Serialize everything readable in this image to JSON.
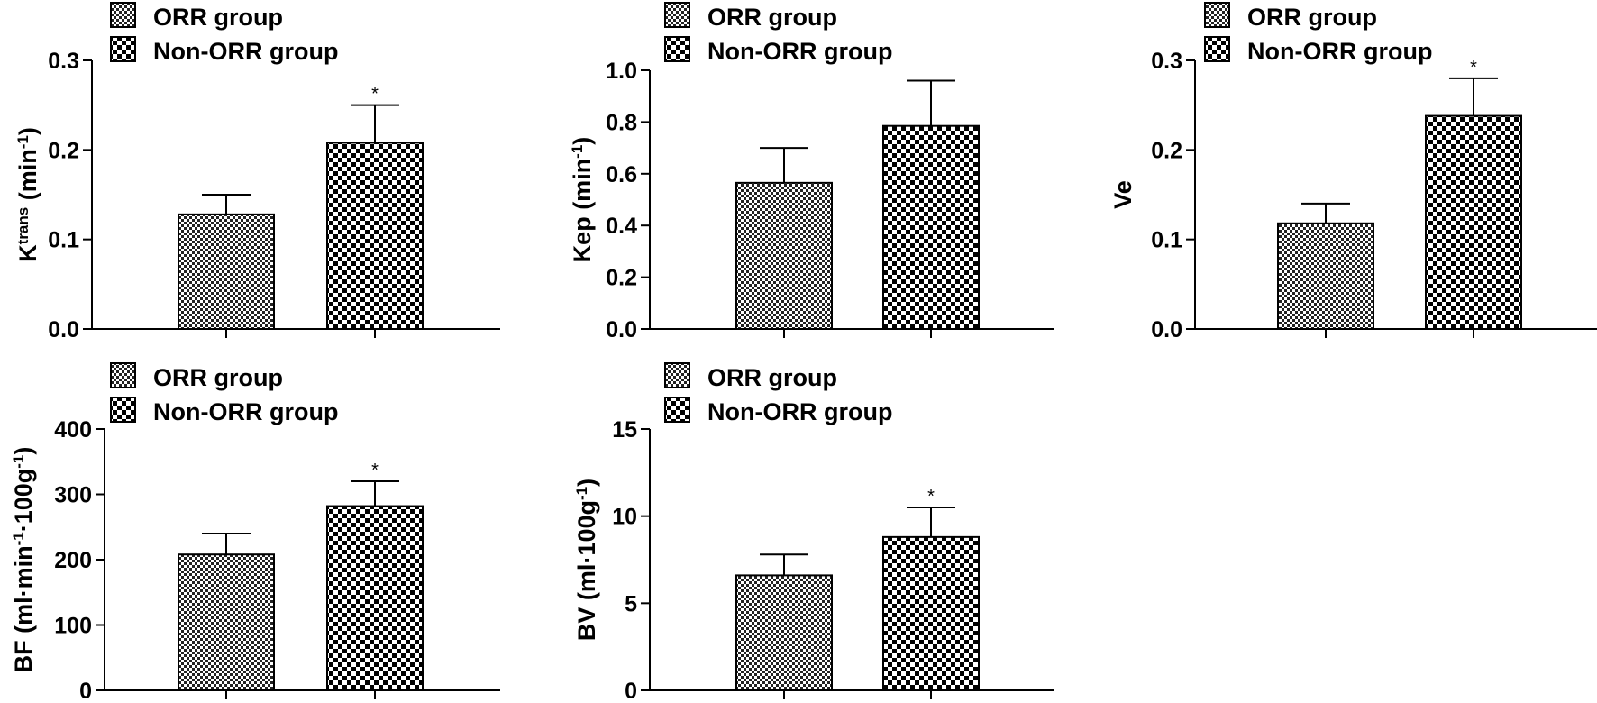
{
  "figure": {
    "legend": {
      "orr_label": "ORR group",
      "non_orr_label": "Non-ORR group"
    }
  },
  "chart_data": [
    {
      "type": "bar",
      "id": "ktrans",
      "categories": [
        "ORR group",
        "Non-ORR group"
      ],
      "values": [
        0.128,
        0.208
      ],
      "errors": [
        0.022,
        0.042
      ],
      "significance": [
        "",
        "*"
      ],
      "ylabel": {
        "base": "K",
        "sup": "trans",
        "rest": " (min",
        "sup2": "-1",
        "end": ")"
      },
      "ylim": [
        0,
        0.3
      ],
      "yticks": [
        "0.0",
        "0.1",
        "0.2",
        "0.3"
      ],
      "legend_placement": "top-left",
      "grid": false
    },
    {
      "type": "bar",
      "id": "kep",
      "categories": [
        "ORR group",
        "Non-ORR group"
      ],
      "values": [
        0.565,
        0.785
      ],
      "errors": [
        0.135,
        0.175
      ],
      "significance": [
        "",
        ""
      ],
      "ylabel": {
        "base": "Kep (min",
        "sup": "-1",
        "rest": ")",
        "sup2": "",
        "end": ""
      },
      "ylim": [
        0,
        1.0
      ],
      "yticks": [
        "0.0",
        "0.2",
        "0.4",
        "0.6",
        "0.8",
        "1.0"
      ],
      "legend_placement": "top-left",
      "grid": false
    },
    {
      "type": "bar",
      "id": "ve",
      "categories": [
        "ORR group",
        "Non-ORR group"
      ],
      "values": [
        0.118,
        0.238
      ],
      "errors": [
        0.022,
        0.042
      ],
      "significance": [
        "",
        "*"
      ],
      "ylabel": {
        "base": "Ve",
        "sup": "",
        "rest": "",
        "sup2": "",
        "end": ""
      },
      "ylim": [
        0,
        0.3
      ],
      "yticks": [
        "0.0",
        "0.1",
        "0.2",
        "0.3"
      ],
      "legend_placement": "top-left",
      "grid": false
    },
    {
      "type": "bar",
      "id": "bf",
      "categories": [
        "ORR group",
        "Non-ORR group"
      ],
      "values": [
        208,
        282
      ],
      "errors": [
        32,
        38
      ],
      "significance": [
        "",
        "*"
      ],
      "ylabel": {
        "base": "BF (ml·min",
        "sup": "-1",
        "rest": "·100g",
        "sup2": "-1",
        "end": ")"
      },
      "ylim": [
        0,
        400
      ],
      "yticks": [
        "0",
        "100",
        "200",
        "300",
        "400"
      ],
      "legend_placement": "top-left",
      "grid": false
    },
    {
      "type": "bar",
      "id": "bv",
      "categories": [
        "ORR group",
        "Non-ORR group"
      ],
      "values": [
        6.6,
        8.8
      ],
      "errors": [
        1.2,
        1.7
      ],
      "significance": [
        "",
        "*"
      ],
      "ylabel": {
        "base": "BV (ml·100g",
        "sup": "-1",
        "rest": ")",
        "sup2": "",
        "end": ""
      },
      "ylim": [
        0,
        15
      ],
      "yticks": [
        "0",
        "5",
        "10",
        "15"
      ],
      "legend_placement": "top-left",
      "grid": false
    }
  ]
}
